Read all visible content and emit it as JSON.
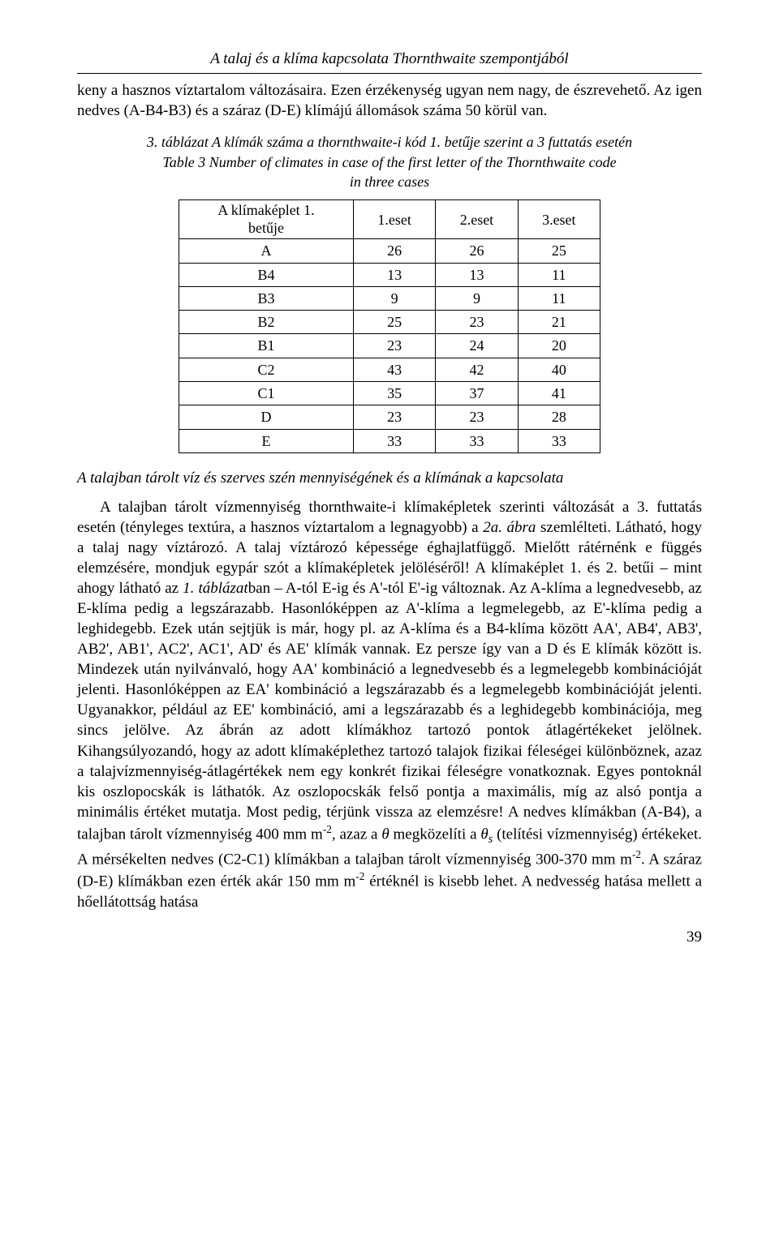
{
  "header": {
    "title": "A talaj és a klíma kapcsolata Thornthwaite szempontjából"
  },
  "para1": "keny a hasznos víztartalom változásaira. Ezen érzékenység ugyan nem nagy, de észrevehető. Az igen nedves (A-B4-B3) és a száraz (D-E) klímájú állomások száma 50 körül van.",
  "table": {
    "caption_hu": "3. táblázat A klímák száma a thornthwaite-i kód 1. betűje szerint a 3 futtatás esetén",
    "caption_en_line1": "Table 3 Number of climates in case of the first letter of the Thornthwaite code",
    "caption_en_line2": "in three cases",
    "headers": [
      "A klímaképlet 1. betűje",
      "1.eset",
      "2.eset",
      "3.eset"
    ],
    "rows": [
      [
        "A",
        "26",
        "26",
        "25"
      ],
      [
        "B4",
        "13",
        "13",
        "11"
      ],
      [
        "B3",
        "9",
        "9",
        "11"
      ],
      [
        "B2",
        "25",
        "23",
        "21"
      ],
      [
        "B1",
        "23",
        "24",
        "20"
      ],
      [
        "C2",
        "43",
        "42",
        "40"
      ],
      [
        "C1",
        "35",
        "37",
        "41"
      ],
      [
        "D",
        "23",
        "23",
        "28"
      ],
      [
        "E",
        "33",
        "33",
        "33"
      ]
    ]
  },
  "section_heading": "A talajban tárolt víz és szerves szén mennyiségének és a klímának a kapcsolata",
  "main_text": {
    "seg1": "A talajban tárolt vízmennyiség thornthwaite-i klímaképletek szerinti változását a 3. futtatás esetén (tényleges textúra, a hasznos víztartalom a legnagyobb) a ",
    "seg2_italic": "2a. ábra",
    "seg3": " szemlélteti. Látható, hogy a talaj nagy víztározó. A talaj víztározó képessége éghajlatfüggő. Mielőtt rátérnénk e függés elemzésére, mondjuk egypár szót a klímaképletek jelöléséről! A klímaképlet 1. és 2. betűi – mint ahogy látható az ",
    "seg4_italic": "1. táblázat",
    "seg5": "ban – A-tól E-ig és  A'-tól E'-ig változnak. Az A-klíma a legnedvesebb, az E-klíma pedig a legszárazabb. Hasonlóképpen az A'-klíma a legmelegebb, az E'-klíma pedig a leghidegebb. Ezek után sejtjük is már, hogy pl. az A-klíma és a B4-klíma között AA', AB4', AB3', AB2', AB1', AC2', AC1', AD' és AE' klímák vannak. Ez persze így van a D és E klímák között is. Mindezek után nyilvánvaló, hogy AA' kombináció a legnedvesebb és a legmelegebb kombinációját jelenti. Hasonlóképpen az EA' kombináció a legszárazabb és a legmelegebb kombinációját jelenti. Ugyanakkor, például az EE' kombináció, ami a legszárazabb és a leghidegebb kombinációja, meg sincs jelölve. Az ábrán az adott klímákhoz tartozó pontok átlagértékeket jelölnek. Kihangsúlyozandó, hogy az adott klímaképlethez tartozó talajok fizikai féleségei különböznek, azaz a talajvízmennyiség-átlagértékek nem egy konkrét fizikai féleségre vonatkoznak. Egyes pontoknál kis oszlopocskák is láthatók. Az oszlopocskák felső pontja a maximális, míg az alsó pontja a minimális értéket mutatja. Most pedig, térjünk vissza az elemzésre! A nedves klímákban (A-B4), a talajban tárolt vízmennyiség 400 mm m",
    "seg6_sup": "-2",
    "seg7": ", azaz a ",
    "seg8_italic": "θ",
    "seg9": " megközelíti a ",
    "seg10_italic": "θ",
    "seg11_sub": "s",
    "seg12": " (telítési vízmennyiség) értékeket. A mérsékelten nedves (C2-C1) klímákban a talajban tárolt vízmennyiség 300-370 mm m",
    "seg13_sup": "-2",
    "seg14": ". A száraz (D-E) klímákban ezen érték akár 150 mm m",
    "seg15_sup": "-2",
    "seg16": " értéknél is kisebb lehet. A nedvesség hatása mellett a hőellátottság hatása"
  },
  "page_number": "39"
}
